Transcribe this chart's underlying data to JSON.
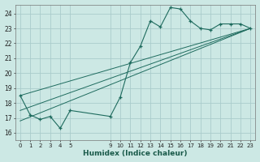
{
  "xlabel": "Humidex (Indice chaleur)",
  "bg_color": "#cce8e4",
  "grid_color": "#aacccc",
  "line_color": "#1e6b5e",
  "xlim": [
    -0.5,
    23.5
  ],
  "ylim": [
    15.5,
    24.6
  ],
  "x_ticks": [
    0,
    1,
    2,
    3,
    4,
    5,
    9,
    10,
    11,
    12,
    13,
    14,
    15,
    16,
    17,
    18,
    19,
    20,
    21,
    22,
    23
  ],
  "y_ticks": [
    16,
    17,
    18,
    19,
    20,
    21,
    22,
    23,
    24
  ],
  "line1_x": [
    0,
    1,
    2,
    3,
    4,
    5,
    9,
    10,
    11,
    12,
    13,
    14,
    15,
    16,
    17,
    18,
    19,
    20,
    21,
    22,
    23
  ],
  "line1_y": [
    18.5,
    17.2,
    16.9,
    17.1,
    16.3,
    17.5,
    17.1,
    18.4,
    20.7,
    21.8,
    23.5,
    23.1,
    24.4,
    24.3,
    23.5,
    23.0,
    22.9,
    23.3,
    23.3,
    23.3,
    23.0
  ],
  "line2_x": [
    0,
    23
  ],
  "line2_y": [
    18.5,
    23.0
  ],
  "line3_x": [
    0,
    23
  ],
  "line3_y": [
    17.5,
    23.0
  ],
  "line4_x": [
    0,
    23
  ],
  "line4_y": [
    16.8,
    23.0
  ]
}
